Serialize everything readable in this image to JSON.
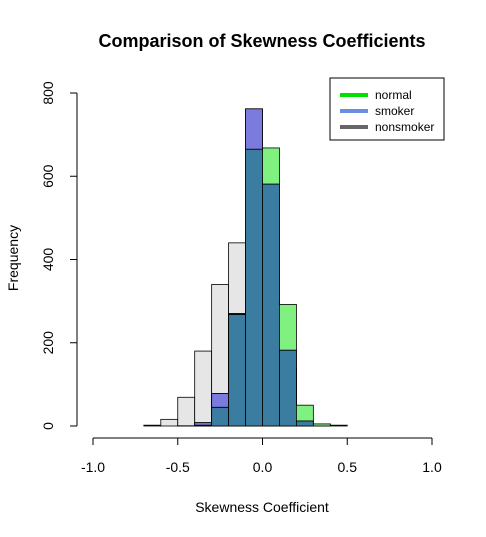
{
  "chart_data": {
    "type": "bar",
    "title": "Comparison of Skewness Coefficients",
    "xlabel": "Skewness Coefficient",
    "ylabel": "Frequency",
    "xlim": [
      -1.0,
      1.0
    ],
    "ylim": [
      0,
      800
    ],
    "bin_edges": [
      -1.0,
      -0.9,
      -0.8,
      -0.7,
      -0.6,
      -0.5,
      -0.4,
      -0.3,
      -0.2,
      -0.1,
      0.0,
      0.1,
      0.2,
      0.3,
      0.4,
      0.5,
      0.6,
      0.7,
      0.8,
      0.9,
      1.0
    ],
    "x_ticks": [
      "-1.0",
      "-0.5",
      "0.0",
      "0.5",
      "1.0"
    ],
    "x_tick_values": [
      -1.0,
      -0.5,
      0.0,
      0.5,
      1.0
    ],
    "y_ticks": [
      "0",
      "200",
      "400",
      "600",
      "800"
    ],
    "y_tick_values": [
      0,
      200,
      400,
      600,
      800
    ],
    "legend_position": "top-right",
    "series": [
      {
        "name": "nonsmoker",
        "color": "#e6e6e6",
        "legend_color": "#666666",
        "values": [
          0,
          0,
          0,
          2,
          16,
          69,
          180,
          340,
          440,
          450,
          300,
          140,
          10,
          5,
          2,
          0,
          0,
          0,
          0,
          0
        ]
      },
      {
        "name": "smoker",
        "color": "#7b7bde",
        "legend_color": "#6d8ee0",
        "values": [
          0,
          0,
          0,
          0,
          0,
          1,
          8,
          78,
          270,
          762,
          581,
          182,
          12,
          0,
          0,
          0,
          0,
          0,
          0,
          0
        ]
      },
      {
        "name": "normal",
        "color": "#80f080",
        "legend_color": "#00e000",
        "values": [
          0,
          0,
          0,
          0,
          0,
          0,
          2,
          45,
          268,
          665,
          668,
          292,
          50,
          5,
          0,
          0,
          0,
          0,
          0,
          0
        ]
      }
    ],
    "overlap_color": "#3a7da0",
    "overlap_smoker_nonsmoker_color": "#5870c8"
  }
}
